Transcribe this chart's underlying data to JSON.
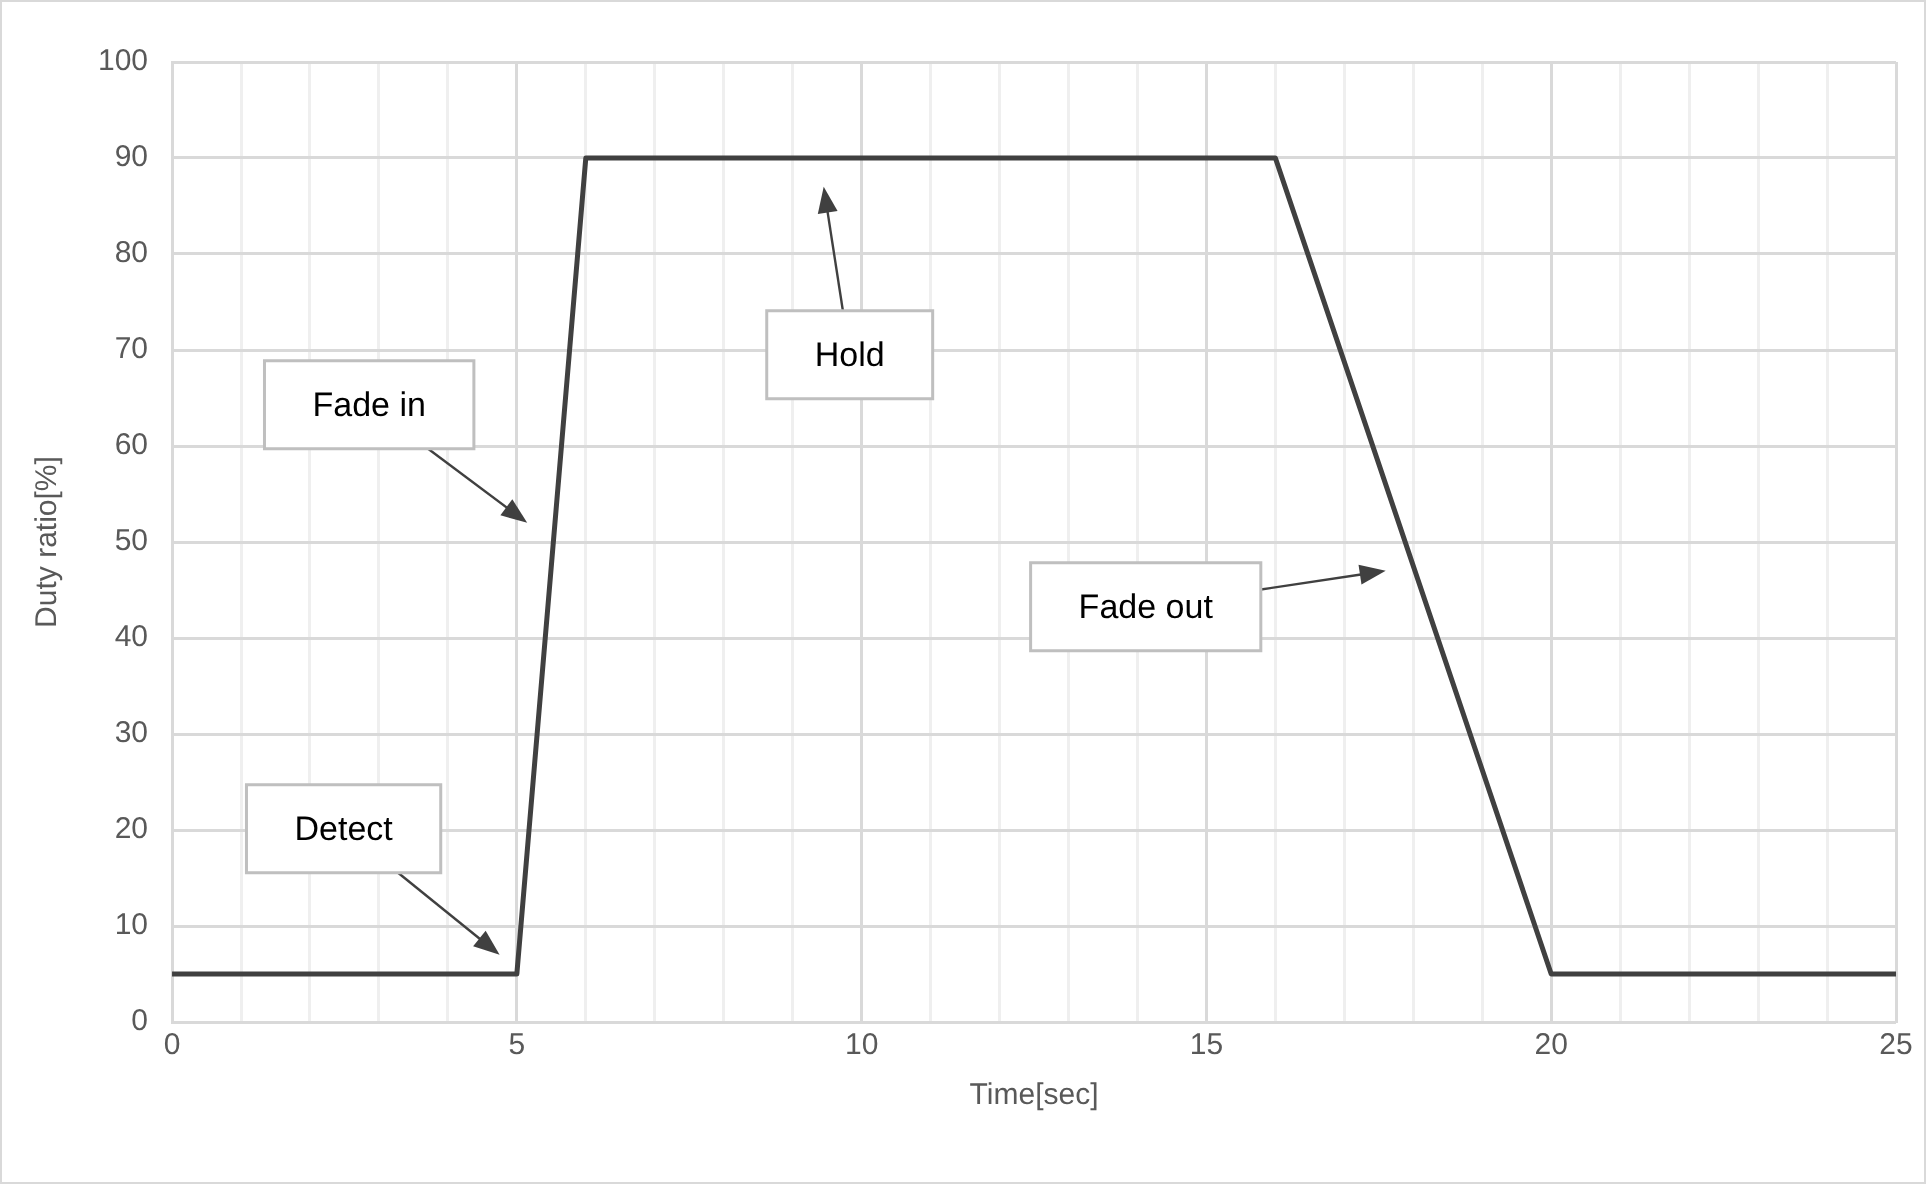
{
  "chart_data": {
    "type": "line",
    "xlabel": "Time[sec]",
    "ylabel": "Duty ratio[%]",
    "x": [
      0,
      5,
      6,
      16,
      20,
      25
    ],
    "series": [
      {
        "color": "#404040",
        "values": [
          5,
          5,
          90,
          90,
          5,
          5
        ]
      }
    ],
    "xlim": [
      0,
      25
    ],
    "xticks": [
      0,
      {
        "value": 1,
        "label": null
      },
      {
        "value": 2,
        "label": null
      },
      {
        "value": 3,
        "label": null
      },
      {
        "value": 4,
        "label": null
      },
      5,
      {
        "value": 6,
        "label": null
      },
      {
        "value": 7,
        "label": null
      },
      {
        "value": 8,
        "label": null
      },
      {
        "value": 9,
        "label": null
      },
      10,
      {
        "value": 11,
        "label": null
      },
      {
        "value": 12,
        "label": null
      },
      {
        "value": 13,
        "label": null
      },
      {
        "value": 14,
        "label": null
      },
      15,
      {
        "value": 16,
        "label": null
      },
      {
        "value": 17,
        "label": null
      },
      {
        "value": 18,
        "label": null
      },
      {
        "value": 19,
        "label": null
      },
      20,
      {
        "value": 21,
        "label": null
      },
      {
        "value": 22,
        "label": null
      },
      {
        "value": 23,
        "label": null
      },
      {
        "value": 24,
        "label": null
      },
      25
    ],
    "ylim": [
      0,
      100
    ],
    "yticks": [
      0,
      10,
      20,
      30,
      40,
      50,
      60,
      70,
      80,
      90,
      100
    ],
    "grid": true,
    "legend": false,
    "marker": "none",
    "line_style": "solid",
    "annotations": [
      "Detect",
      "Fade in",
      "Hold",
      "Fade out"
    ]
  }
}
